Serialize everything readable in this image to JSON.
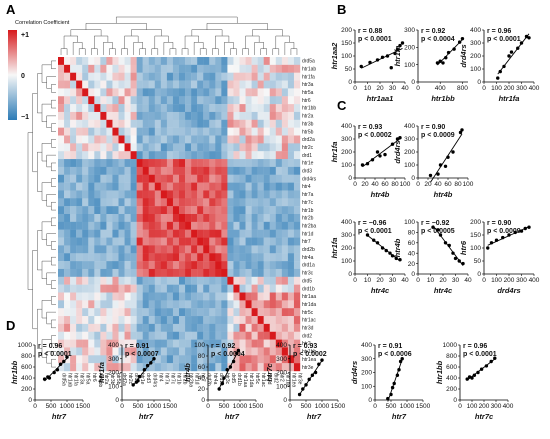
{
  "panels": {
    "A": "A",
    "B": "B",
    "C": "C",
    "D": "D"
  },
  "colorbar": {
    "title": "Correlation Coefficient",
    "ticks": [
      {
        "label": "+1",
        "v": 1
      },
      {
        "label": "0",
        "v": 0
      },
      {
        "label": "−1",
        "v": -1
      }
    ],
    "colors": {
      "high": "#d7191c",
      "mid": "#f7f7f7",
      "low": "#2c7bb6"
    }
  },
  "heatmap": {
    "labels": [
      "drd5a",
      "htr1ab",
      "htr1fa",
      "htr3a",
      "htr5a",
      "htr6",
      "htr1bb",
      "htr2a",
      "htr3b",
      "htr5b",
      "drd2a",
      "htr2c",
      "drd1",
      "htr1e",
      "drd3",
      "drd4rs",
      "htr4",
      "htr7a",
      "htr7c",
      "htr1b",
      "htr2b",
      "htr2ba",
      "htr1d",
      "htr7",
      "drd2b",
      "htr4a",
      "drd1a",
      "htr3c",
      "drd5",
      "drd1b",
      "htr1aa",
      "htr1da",
      "htr5c",
      "htr1ac",
      "htr3d",
      "drd2",
      "htr2",
      "htr1bb",
      "htr1ea",
      "htr3e"
    ]
  },
  "scatter_panels": [
    {
      "group": "B",
      "xlabel": "htr1aa1",
      "ylabel": "htr1aa2",
      "r": "r = 0.88",
      "p": "p < 0.0001",
      "xticks": [
        0,
        10,
        20,
        30,
        40
      ],
      "xlim": [
        0,
        40
      ],
      "yticks": [
        0,
        50,
        100,
        150,
        200
      ],
      "ylim": [
        0,
        200
      ],
      "points": [
        [
          5,
          60
        ],
        [
          12,
          75
        ],
        [
          18,
          85
        ],
        [
          22,
          95
        ],
        [
          26,
          100
        ],
        [
          29,
          55
        ],
        [
          32,
          110
        ],
        [
          34,
          125
        ],
        [
          36,
          140
        ],
        [
          38,
          150
        ]
      ]
    },
    {
      "group": "B",
      "xlabel": "htr1bb",
      "ylabel": "htr1fa",
      "r": "r = 0.92",
      "p": "p < 0.0004",
      "xticks": [
        0,
        400,
        800
      ],
      "xlim": [
        0,
        900
      ],
      "yticks": [
        0,
        100,
        200,
        300
      ],
      "ylim": [
        0,
        300
      ],
      "points": [
        [
          350,
          110
        ],
        [
          400,
          120
        ],
        [
          450,
          110
        ],
        [
          500,
          140
        ],
        [
          550,
          170
        ],
        [
          650,
          190
        ],
        [
          750,
          230
        ],
        [
          800,
          250
        ]
      ]
    },
    {
      "group": "B",
      "xlabel": "htr1fa",
      "ylabel": "drd4rs",
      "r": "r = 0.96",
      "p": "p < 0.0001",
      "xticks": [
        0,
        100,
        200,
        300,
        400
      ],
      "xlim": [
        0,
        400
      ],
      "yticks": [
        0,
        100,
        200,
        300,
        400
      ],
      "ylim": [
        0,
        400
      ],
      "points": [
        [
          110,
          30
        ],
        [
          130,
          80
        ],
        [
          160,
          120
        ],
        [
          200,
          200
        ],
        [
          220,
          230
        ],
        [
          270,
          260
        ],
        [
          300,
          300
        ],
        [
          340,
          350
        ],
        [
          360,
          340
        ]
      ]
    },
    {
      "group": "C",
      "xlabel": "htr4b",
      "ylabel": "htr1fa",
      "r": "r = 0.93",
      "p": "p < 0.0002",
      "xticks": [
        0,
        20,
        40,
        60,
        80,
        100
      ],
      "xlim": [
        0,
        100
      ],
      "yticks": [
        0,
        100,
        200,
        300,
        400
      ],
      "ylim": [
        0,
        400
      ],
      "points": [
        [
          15,
          100
        ],
        [
          25,
          110
        ],
        [
          35,
          140
        ],
        [
          45,
          200
        ],
        [
          50,
          170
        ],
        [
          60,
          180
        ],
        [
          75,
          260
        ],
        [
          85,
          300
        ],
        [
          90,
          310
        ]
      ]
    },
    {
      "group": "C",
      "xlabel": "htr4b",
      "ylabel": "drd4rs",
      "r": "r = 0.90",
      "p": "p < 0.0009",
      "xticks": [
        0,
        20,
        40,
        60,
        80,
        100
      ],
      "xlim": [
        0,
        100
      ],
      "yticks": [
        0,
        100,
        200,
        300,
        400
      ],
      "ylim": [
        0,
        400
      ],
      "points": [
        [
          25,
          20
        ],
        [
          40,
          30
        ],
        [
          45,
          100
        ],
        [
          55,
          90
        ],
        [
          60,
          160
        ],
        [
          70,
          200
        ],
        [
          85,
          350
        ],
        [
          88,
          370
        ]
      ]
    },
    {
      "group": "C",
      "xlabel": "htr4c",
      "ylabel": "htr1fa",
      "r": "r = −0.96",
      "p": "p < 0.0001",
      "xticks": [
        0,
        10,
        20,
        30,
        40
      ],
      "xlim": [
        0,
        40
      ],
      "yticks": [
        0,
        100,
        200,
        300,
        400
      ],
      "ylim": [
        0,
        400
      ],
      "points": [
        [
          10,
          300
        ],
        [
          15,
          260
        ],
        [
          18,
          240
        ],
        [
          22,
          200
        ],
        [
          25,
          180
        ],
        [
          28,
          160
        ],
        [
          30,
          140
        ],
        [
          33,
          120
        ],
        [
          36,
          110
        ]
      ]
    },
    {
      "group": "C",
      "xlabel": "htr4c",
      "ylabel": "htr4b",
      "r": "r = −0.92",
      "p": "p < 0.0005",
      "xticks": [
        0,
        10,
        20,
        30,
        40
      ],
      "xlim": [
        0,
        40
      ],
      "yticks": [
        0,
        20,
        40,
        60,
        80,
        100
      ],
      "ylim": [
        0,
        100
      ],
      "points": [
        [
          12,
          90
        ],
        [
          16,
          85
        ],
        [
          18,
          75
        ],
        [
          22,
          60
        ],
        [
          25,
          55
        ],
        [
          28,
          40
        ],
        [
          30,
          30
        ],
        [
          33,
          25
        ],
        [
          36,
          20
        ]
      ]
    },
    {
      "group": "C",
      "xlabel": "drd4rs",
      "ylabel": "htr6",
      "r": "r = 0.90",
      "p": "p < 0.0009",
      "xticks": [
        0,
        100,
        200,
        300,
        400
      ],
      "xlim": [
        0,
        400
      ],
      "yticks": [
        0,
        50,
        100,
        150,
        200
      ],
      "ylim": [
        0,
        200
      ],
      "points": [
        [
          30,
          100
        ],
        [
          60,
          120
        ],
        [
          100,
          130
        ],
        [
          150,
          140
        ],
        [
          200,
          150
        ],
        [
          250,
          160
        ],
        [
          300,
          165
        ],
        [
          330,
          175
        ],
        [
          360,
          180
        ]
      ]
    },
    {
      "group": "D",
      "xlabel": "htr7",
      "ylabel": "htr1bb",
      "r": "r = 0.96",
      "p": "p < 0.0001",
      "xticks": [
        0,
        500,
        1000,
        1500
      ],
      "xlim": [
        0,
        1500
      ],
      "yticks": [
        0,
        200,
        400,
        600,
        800,
        1000
      ],
      "ylim": [
        0,
        1000
      ],
      "points": [
        [
          300,
          380
        ],
        [
          400,
          420
        ],
        [
          450,
          400
        ],
        [
          600,
          500
        ],
        [
          700,
          550
        ],
        [
          800,
          650
        ],
        [
          900,
          700
        ],
        [
          1000,
          780
        ]
      ]
    },
    {
      "group": "D",
      "xlabel": "htr7",
      "ylabel": "htr1fa",
      "r": "r = 0.91",
      "p": "p < 0.0007",
      "xticks": [
        0,
        500,
        1000,
        1500
      ],
      "xlim": [
        0,
        1500
      ],
      "yticks": [
        0,
        100,
        200,
        300,
        400
      ],
      "ylim": [
        0,
        400
      ],
      "points": [
        [
          350,
          110
        ],
        [
          450,
          130
        ],
        [
          500,
          140
        ],
        [
          550,
          170
        ],
        [
          700,
          220
        ],
        [
          800,
          250
        ],
        [
          900,
          270
        ],
        [
          1000,
          300
        ]
      ]
    },
    {
      "group": "D",
      "xlabel": "htr7",
      "ylabel": "htr4b",
      "r": "r = 0.92",
      "p": "p < 0.0004",
      "xticks": [
        0,
        500,
        1000,
        1500
      ],
      "xlim": [
        0,
        1500
      ],
      "yticks": [
        0,
        20,
        40,
        60,
        80,
        100
      ],
      "ylim": [
        0,
        100
      ],
      "points": [
        [
          350,
          20
        ],
        [
          450,
          30
        ],
        [
          500,
          40
        ],
        [
          600,
          55
        ],
        [
          700,
          60
        ],
        [
          800,
          70
        ],
        [
          900,
          85
        ],
        [
          950,
          90
        ]
      ]
    },
    {
      "group": "D",
      "xlabel": "htr7",
      "ylabel": "htr7c",
      "r": "r = 0.93",
      "p": "p < 0.0002",
      "xticks": [
        0,
        500,
        1000,
        1500
      ],
      "xlim": [
        0,
        1500
      ],
      "yticks": [
        0,
        100,
        200,
        300,
        400
      ],
      "ylim": [
        0,
        400
      ],
      "points": [
        [
          300,
          40
        ],
        [
          400,
          80
        ],
        [
          500,
          110
        ],
        [
          600,
          150
        ],
        [
          700,
          180
        ],
        [
          800,
          200
        ],
        [
          900,
          260
        ],
        [
          1000,
          290
        ]
      ]
    },
    {
      "group": "D",
      "xlabel": "htr7",
      "ylabel": "drd4rs",
      "r": "r = 0.91",
      "p": "p < 0.0006",
      "xticks": [
        0,
        500,
        1000,
        1500
      ],
      "xlim": [
        0,
        1500
      ],
      "yticks": [
        0,
        100,
        200,
        300,
        400
      ],
      "ylim": [
        0,
        400
      ],
      "points": [
        [
          400,
          10
        ],
        [
          500,
          40
        ],
        [
          550,
          90
        ],
        [
          600,
          120
        ],
        [
          700,
          180
        ],
        [
          750,
          220
        ],
        [
          800,
          280
        ],
        [
          850,
          300
        ]
      ]
    },
    {
      "group": "D",
      "xlabel": "htr7c",
      "ylabel": "htr1bb",
      "r": "r = 0.96",
      "p": "p < 0.0001",
      "xticks": [
        0,
        100,
        200,
        300,
        400
      ],
      "xlim": [
        0,
        400
      ],
      "yticks": [
        0,
        200,
        400,
        600,
        800,
        1000
      ],
      "ylim": [
        0,
        1000
      ],
      "points": [
        [
          60,
          380
        ],
        [
          80,
          420
        ],
        [
          100,
          400
        ],
        [
          120,
          450
        ],
        [
          150,
          500
        ],
        [
          180,
          560
        ],
        [
          220,
          620
        ],
        [
          260,
          700
        ],
        [
          290,
          760
        ]
      ]
    }
  ]
}
